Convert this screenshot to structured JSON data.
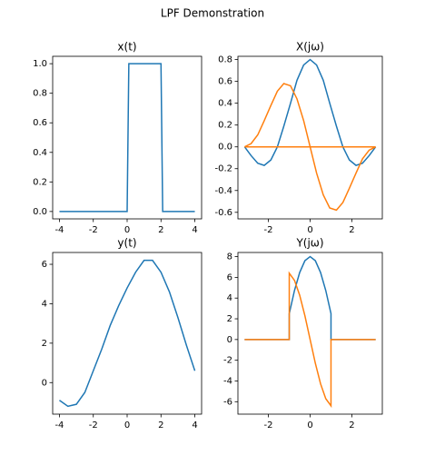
{
  "title": "LPF Demonstration",
  "chart_data": [
    {
      "type": "line",
      "title": "x(t)",
      "x": [
        -4,
        0,
        0.1,
        2,
        2.1,
        4
      ],
      "series": [
        {
          "color": "#1f77b4",
          "values": [
            0,
            0,
            1,
            1,
            0,
            0
          ]
        }
      ],
      "xlim": [
        -4.4,
        4.4
      ],
      "xticks": [
        -4,
        -2,
        0,
        2,
        4
      ],
      "ylim": [
        -0.05,
        1.05
      ],
      "yticks": [
        {
          "value": 0,
          "label": "0.0"
        },
        0.2,
        0.4,
        0.6,
        0.8,
        {
          "value": 1,
          "label": "1.0"
        }
      ]
    },
    {
      "type": "line",
      "title": "X(jω)",
      "x": [
        -3.14,
        -2.83,
        -2.51,
        -2.2,
        -1.88,
        -1.57,
        -1.26,
        -0.94,
        -0.63,
        -0.31,
        0,
        0.31,
        0.63,
        0.94,
        1.26,
        1.57,
        1.88,
        2.2,
        2.51,
        2.83,
        3.14
      ],
      "series": [
        {
          "color": "#1f77b4",
          "values": [
            0,
            -0.08,
            -0.15,
            -0.17,
            -0.12,
            0,
            0.19,
            0.4,
            0.61,
            0.75,
            0.8,
            0.75,
            0.61,
            0.4,
            0.19,
            0,
            -0.12,
            -0.17,
            -0.15,
            -0.08,
            0
          ]
        },
        {
          "color": "#ff7f0e",
          "values": [
            0,
            0.03,
            0.11,
            0.24,
            0.38,
            0.51,
            0.58,
            0.56,
            0.44,
            0.24,
            0,
            -0.24,
            -0.44,
            -0.56,
            -0.58,
            -0.51,
            -0.38,
            -0.24,
            -0.11,
            -0.03,
            0
          ]
        },
        {
          "color": "#ff7f0e",
          "values": [
            0,
            0,
            0,
            0,
            0,
            0,
            0,
            0,
            0,
            0,
            0,
            0,
            0,
            0,
            0,
            0,
            0,
            0,
            0,
            0,
            0
          ]
        }
      ],
      "xlim": [
        -3.46,
        3.46
      ],
      "xticks": [
        -2,
        0,
        2
      ],
      "ylim": [
        -0.66,
        0.83
      ],
      "yticks": [
        -0.6,
        -0.4,
        -0.2,
        {
          "value": 0,
          "label": "0.0"
        },
        0.2,
        0.4,
        0.6,
        0.8
      ]
    },
    {
      "type": "line",
      "title": "y(t)",
      "x": [
        -4,
        -3.5,
        -3,
        -2.5,
        -2,
        -1.5,
        -1,
        -0.5,
        0,
        0.5,
        1,
        1.5,
        2,
        2.5,
        3,
        3.5,
        4
      ],
      "series": [
        {
          "color": "#1f77b4",
          "values": [
            -0.9,
            -1.2,
            -1.1,
            -0.5,
            0.6,
            1.7,
            2.9,
            3.9,
            4.8,
            5.6,
            6.2,
            6.2,
            5.6,
            4.6,
            3.3,
            1.9,
            0.6
          ]
        }
      ],
      "xlim": [
        -4.4,
        4.4
      ],
      "xticks": [
        -4,
        -2,
        0,
        2,
        4
      ],
      "ylim": [
        -1.6,
        6.6
      ],
      "yticks": [
        0,
        2,
        4,
        6
      ]
    },
    {
      "type": "line",
      "title": "Y(jω)",
      "x": [
        -3.14,
        -1,
        -1,
        -0.75,
        -0.5,
        -0.25,
        0,
        0.25,
        0.5,
        0.75,
        1,
        1,
        3.14
      ],
      "series": [
        {
          "color": "#1f77b4",
          "values": [
            0,
            0,
            2.5,
            4.73,
            6.47,
            7.61,
            8,
            7.61,
            6.47,
            4.73,
            2.5,
            0,
            0
          ]
        },
        {
          "color": "#ff7f0e",
          "values": [
            0,
            0,
            6.4,
            5.71,
            4.27,
            2.29,
            0,
            -2.29,
            -4.27,
            -5.71,
            -6.4,
            0,
            0
          ]
        }
      ],
      "xlim": [
        -3.46,
        3.46
      ],
      "xticks": [
        -2,
        0,
        2
      ],
      "ylim": [
        -7.2,
        8.4
      ],
      "yticks": [
        -6,
        -4,
        -2,
        0,
        2,
        4,
        6,
        8
      ]
    }
  ]
}
